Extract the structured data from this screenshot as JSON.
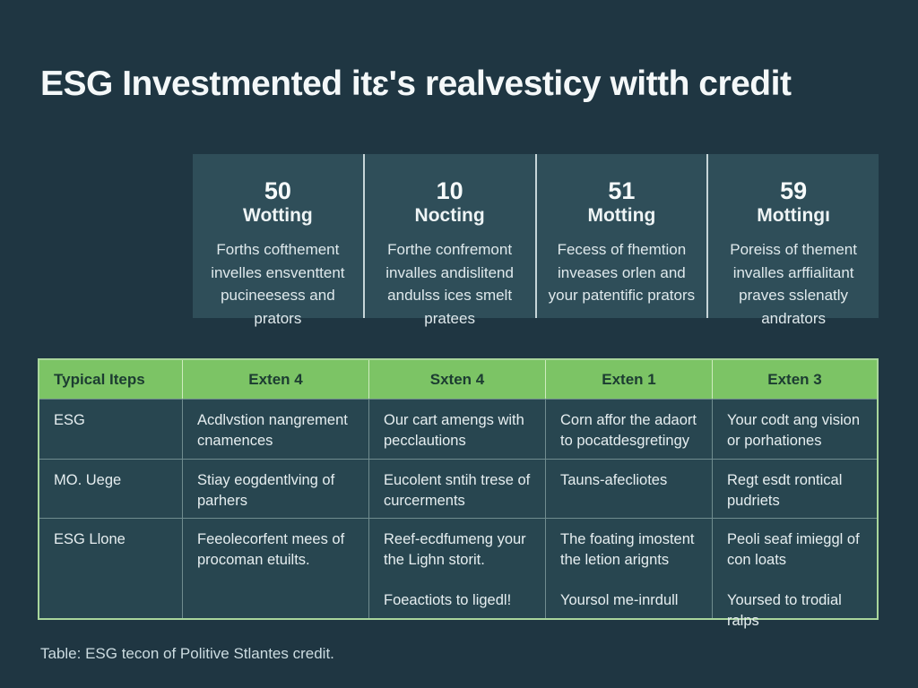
{
  "title": "ESG Investmented itɛ's realvesticy witth credit",
  "colors": {
    "page_background": "#1f3642",
    "card_background": "#2f4e59",
    "table_header_green": "#7cc465",
    "table_cell_background": "#284650",
    "table_border_green": "#a9d69c",
    "text_light": "#f4f8f9"
  },
  "stats": {
    "cards": [
      {
        "value": "50",
        "label": "Wotting",
        "description": "Forths cofthement invelles ensventtent pucineesess and prators"
      },
      {
        "value": "10",
        "label": "Nocting",
        "description": "Forthe confremont invalles andislitend andulss ices smelt pratees"
      },
      {
        "value": "51",
        "label": "Motting",
        "description": "Fecess of fhemtion inveases orlen and your patentific prators"
      },
      {
        "value": "59",
        "label": "Mottingı",
        "description": "Poreiss of thement invalles arffialitant praves sslenatly andrators"
      }
    ]
  },
  "table": {
    "headers": [
      "Typical Iteps",
      "Exten 4",
      "Sxten 4",
      "Exten 1",
      "Exten 3"
    ],
    "rows": [
      [
        [
          "ESG"
        ],
        [
          "Acdlvstion nangrement cnamences"
        ],
        [
          "Our cart amengs with pecclautions"
        ],
        [
          "Corn affor the adaort to pocatdesgretingy"
        ],
        [
          "Your codt ang vision or porhationes"
        ]
      ],
      [
        [
          "MO. Uege"
        ],
        [
          "Stiay eogdentlving of parhers"
        ],
        [
          "Eucolent sntih trese of curcerments"
        ],
        [
          "Tauns-afecliotes"
        ],
        [
          "Regt esdt rontical pudriets"
        ]
      ],
      [
        [
          "ESG Llone"
        ],
        [
          "Feeolecorfent mees of procoman etuilts."
        ],
        [
          "Reef-ecdfumeng your the Lighn storit.",
          "Foeactiots to ligedl!"
        ],
        [
          "The foating imostent the letion arignts",
          "Yoursol me-inrdull"
        ],
        [
          "Peoli seaf imieggl of con loats",
          "Yoursed to trodial ralps"
        ]
      ]
    ],
    "caption": "Table: ESG tecon of Politive Stlantes credit."
  }
}
